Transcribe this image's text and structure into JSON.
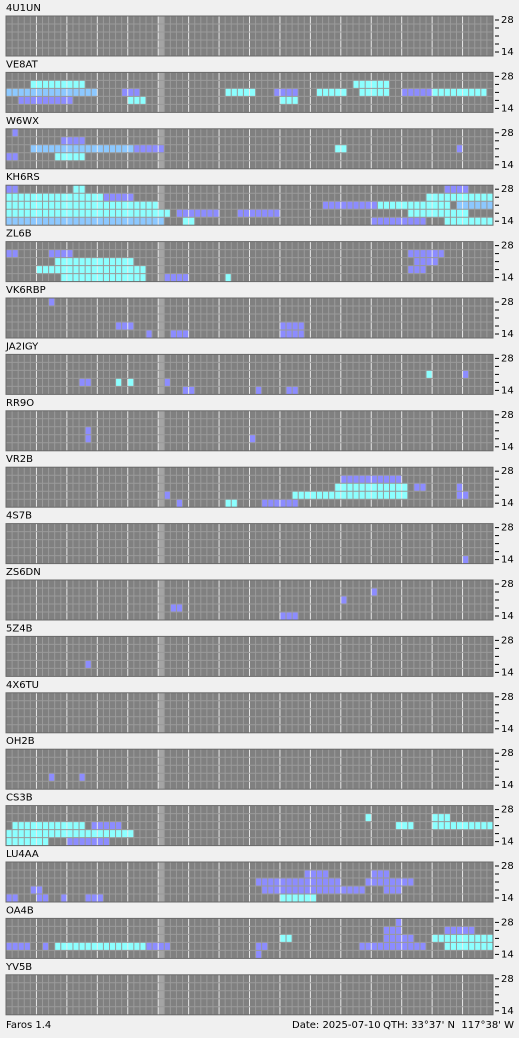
{
  "panels": [
    {
      "station": "4U1UN",
      "runs": []
    },
    {
      "station": "VE8AT",
      "runs": [
        [
          1,
          4,
          12,
          3
        ],
        [
          1,
          57,
          62,
          3
        ],
        [
          2,
          0,
          14,
          2
        ],
        [
          2,
          19,
          21,
          1
        ],
        [
          2,
          36,
          40,
          3
        ],
        [
          2,
          44,
          47,
          1
        ],
        [
          2,
          51,
          55,
          3
        ],
        [
          2,
          58,
          62,
          3
        ],
        [
          2,
          65,
          69,
          1
        ],
        [
          2,
          70,
          78,
          3
        ],
        [
          3,
          2,
          10,
          1
        ],
        [
          3,
          20,
          22,
          3
        ],
        [
          3,
          45,
          47,
          3
        ]
      ]
    },
    {
      "station": "W6WX",
      "runs": [
        [
          0,
          1,
          1,
          1
        ],
        [
          1,
          9,
          12,
          1
        ],
        [
          2,
          4,
          20,
          2
        ],
        [
          2,
          21,
          25,
          1
        ],
        [
          2,
          54,
          55,
          3
        ],
        [
          2,
          74,
          74,
          1
        ],
        [
          3,
          0,
          1,
          1
        ],
        [
          3,
          8,
          12,
          3
        ]
      ]
    },
    {
      "station": "KH6RS",
      "runs": [
        [
          0,
          0,
          1,
          1
        ],
        [
          0,
          11,
          12,
          3
        ],
        [
          0,
          72,
          75,
          1
        ],
        [
          1,
          0,
          15,
          3
        ],
        [
          1,
          16,
          20,
          1
        ],
        [
          1,
          69,
          79,
          3
        ],
        [
          2,
          0,
          24,
          3
        ],
        [
          2,
          52,
          60,
          1
        ],
        [
          2,
          61,
          72,
          3
        ],
        [
          2,
          74,
          79,
          2
        ],
        [
          3,
          0,
          26,
          3
        ],
        [
          3,
          28,
          34,
          1
        ],
        [
          3,
          38,
          44,
          1
        ],
        [
          3,
          66,
          75,
          3
        ],
        [
          4,
          0,
          25,
          2
        ],
        [
          4,
          29,
          30,
          3
        ],
        [
          4,
          60,
          68,
          1
        ],
        [
          4,
          72,
          79,
          3
        ]
      ]
    },
    {
      "station": "ZL6B",
      "runs": [
        [
          1,
          0,
          1,
          1
        ],
        [
          1,
          7,
          10,
          1
        ],
        [
          1,
          66,
          71,
          1
        ],
        [
          2,
          8,
          20,
          3
        ],
        [
          2,
          67,
          70,
          1
        ],
        [
          3,
          5,
          22,
          3
        ],
        [
          3,
          66,
          68,
          1
        ],
        [
          4,
          9,
          22,
          3
        ],
        [
          4,
          26,
          29,
          1
        ],
        [
          4,
          36,
          36,
          3
        ]
      ]
    },
    {
      "station": "VK6RBP",
      "runs": [
        [
          0,
          7,
          7,
          1
        ],
        [
          3,
          18,
          20,
          1
        ],
        [
          3,
          45,
          48,
          1
        ],
        [
          4,
          23,
          23,
          1
        ],
        [
          4,
          27,
          29,
          1
        ],
        [
          4,
          45,
          48,
          1
        ]
      ]
    },
    {
      "station": "JA2IGY",
      "runs": [
        [
          2,
          69,
          69,
          3
        ],
        [
          2,
          75,
          75,
          1
        ],
        [
          3,
          12,
          13,
          1
        ],
        [
          3,
          18,
          18,
          3
        ],
        [
          3,
          20,
          20,
          3
        ],
        [
          3,
          26,
          26,
          1
        ],
        [
          4,
          29,
          30,
          1
        ],
        [
          4,
          41,
          41,
          1
        ],
        [
          4,
          46,
          47,
          1
        ]
      ]
    },
    {
      "station": "RR9O",
      "runs": [
        [
          2,
          13,
          13,
          1
        ],
        [
          3,
          13,
          13,
          1
        ],
        [
          3,
          40,
          40,
          1
        ]
      ]
    },
    {
      "station": "VR2B",
      "runs": [
        [
          1,
          55,
          64,
          1
        ],
        [
          2,
          54,
          65,
          3
        ],
        [
          2,
          67,
          68,
          1
        ],
        [
          2,
          74,
          74,
          1
        ],
        [
          3,
          26,
          26,
          1
        ],
        [
          3,
          47,
          65,
          3
        ],
        [
          3,
          74,
          75,
          1
        ],
        [
          4,
          28,
          28,
          1
        ],
        [
          4,
          36,
          37,
          3
        ],
        [
          4,
          42,
          47,
          1
        ]
      ]
    },
    {
      "station": "4S7B",
      "runs": [
        [
          4,
          75,
          75,
          1
        ]
      ]
    },
    {
      "station": "ZS6DN",
      "runs": [
        [
          1,
          60,
          60,
          1
        ],
        [
          2,
          55,
          55,
          1
        ],
        [
          3,
          27,
          28,
          1
        ],
        [
          4,
          45,
          47,
          1
        ]
      ]
    },
    {
      "station": "5Z4B",
      "runs": [
        [
          3,
          13,
          13,
          1
        ]
      ]
    },
    {
      "station": "4X6TU",
      "runs": []
    },
    {
      "station": "OH2B",
      "runs": [
        [
          3,
          7,
          7,
          1
        ],
        [
          3,
          12,
          12,
          1
        ]
      ]
    },
    {
      "station": "CS3B",
      "runs": [
        [
          1,
          59,
          59,
          3
        ],
        [
          1,
          70,
          72,
          3
        ],
        [
          2,
          1,
          12,
          3
        ],
        [
          2,
          14,
          18,
          1
        ],
        [
          2,
          64,
          66,
          3
        ],
        [
          2,
          70,
          79,
          3
        ],
        [
          3,
          0,
          20,
          3
        ],
        [
          4,
          0,
          6,
          3
        ],
        [
          4,
          10,
          16,
          1
        ]
      ]
    },
    {
      "station": "LU4AA",
      "runs": [
        [
          1,
          49,
          52,
          1
        ],
        [
          1,
          60,
          62,
          1
        ],
        [
          2,
          41,
          54,
          1
        ],
        [
          2,
          59,
          66,
          1
        ],
        [
          3,
          4,
          5,
          1
        ],
        [
          3,
          42,
          58,
          1
        ],
        [
          3,
          62,
          64,
          1
        ],
        [
          4,
          0,
          1,
          1
        ],
        [
          4,
          5,
          6,
          1
        ],
        [
          4,
          9,
          9,
          1
        ],
        [
          4,
          13,
          15,
          1
        ],
        [
          4,
          45,
          50,
          3
        ]
      ]
    },
    {
      "station": "OA4B",
      "runs": [
        [
          0,
          64,
          64,
          1
        ],
        [
          1,
          62,
          64,
          1
        ],
        [
          1,
          72,
          76,
          1
        ],
        [
          2,
          45,
          46,
          3
        ],
        [
          2,
          62,
          66,
          1
        ],
        [
          2,
          70,
          79,
          3
        ],
        [
          3,
          0,
          3,
          1
        ],
        [
          3,
          6,
          6,
          1
        ],
        [
          3,
          8,
          22,
          3
        ],
        [
          3,
          23,
          26,
          1
        ],
        [
          3,
          41,
          42,
          1
        ],
        [
          3,
          58,
          68,
          1
        ],
        [
          3,
          72,
          79,
          3
        ],
        [
          4,
          41,
          41,
          1
        ]
      ]
    },
    {
      "station": "YV5B",
      "runs": []
    }
  ],
  "band_top": "28",
  "band_bottom": "14",
  "level_colors": [
    "#8c8cff",
    "#8cc8ff",
    "#8cffff"
  ],
  "footer": {
    "app": "Faros 1.4",
    "date": "Date: 2025-07-10",
    "qth": "QTH: 33°37' N  117°38' W"
  }
}
